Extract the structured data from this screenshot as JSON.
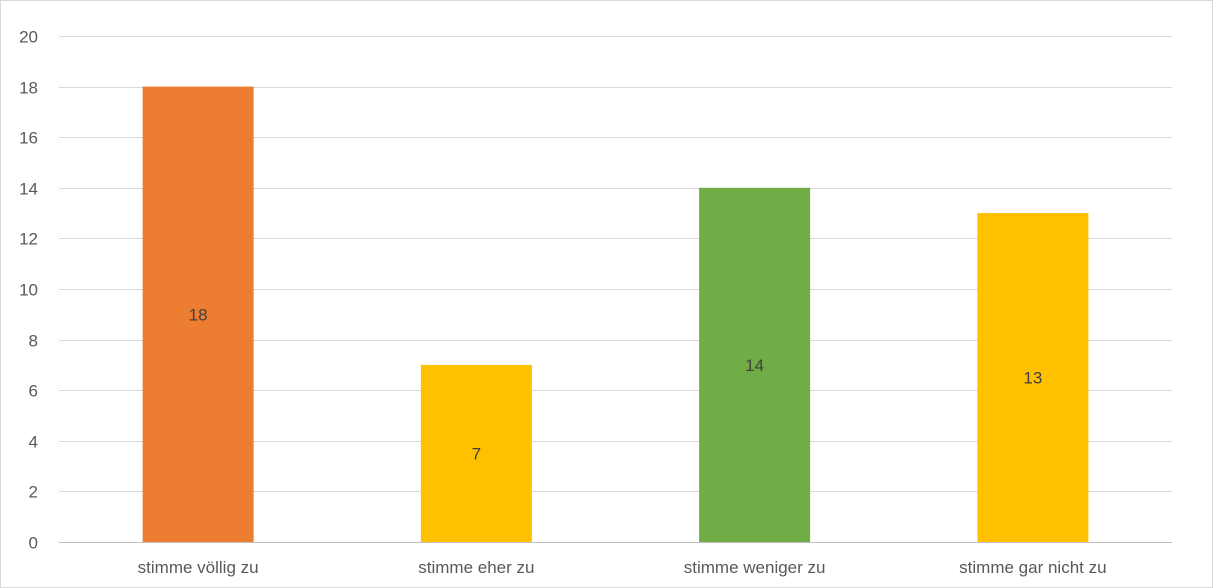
{
  "chart_data": {
    "type": "bar",
    "categories": [
      "stimme völlig zu",
      "stimme eher zu",
      "stimme weniger zu",
      "stimme gar nicht zu"
    ],
    "values": [
      18,
      7,
      14,
      13
    ],
    "data_labels": [
      "18",
      "7",
      "14",
      "13"
    ],
    "bar_colors": [
      "#ED7D31",
      "#FFC000",
      "#70AD47",
      "#FFC000"
    ],
    "title": "",
    "xlabel": "",
    "ylabel": "",
    "ylim": [
      0,
      20
    ],
    "y_ticks": [
      0,
      2,
      4,
      6,
      8,
      10,
      12,
      14,
      16,
      18,
      20
    ],
    "grid": true,
    "legend": "none"
  },
  "colors": {
    "gridline": "#d9d9d9",
    "axis_line": "#bfbfbf",
    "text": "#595959"
  }
}
